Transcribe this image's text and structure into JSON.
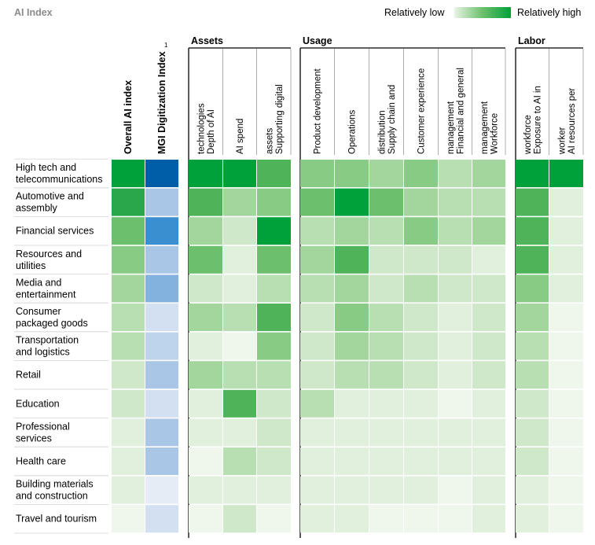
{
  "title": "AI Index",
  "legend": {
    "low_label": "Relatively low",
    "high_label": "Relatively high"
  },
  "colors": {
    "green_scale": [
      "#eff7ed",
      "#e1f0dd",
      "#cfe8ca",
      "#b8dfb2",
      "#a2d69c",
      "#88cb84",
      "#6cbf6c",
      "#4fb35a",
      "#2aa74a",
      "#00a13a"
    ],
    "blue_scale": [
      "#e6ecf6",
      "#d3e0f1",
      "#bed3ec",
      "#a9c6e7",
      "#83b2de",
      "#3a8fd1",
      "#005ea8"
    ],
    "group_rule": "#000000",
    "cell_gap": "#ffffff"
  },
  "chart_data": {
    "type": "heatmap",
    "value_scale": "1 = relatively low, 10 = relatively high",
    "standalone_columns": [
      {
        "key": "overall",
        "label": "Overall AI index",
        "color_scale": "green"
      },
      {
        "key": "mgi",
        "label": "MGI Digitization Index",
        "footnote": "1",
        "color_scale": "blue"
      }
    ],
    "groups": [
      {
        "name": "Assets",
        "columns": [
          "Depth of AI technologies",
          "AI spend",
          "Supporting digital assets"
        ]
      },
      {
        "name": "Usage",
        "columns": [
          "Product development",
          "Operations",
          "Supply chain and distribution",
          "Customer experience",
          "Financial and general management",
          "Workforce management"
        ]
      },
      {
        "name": "Labor",
        "columns": [
          "Exposure to AI in workforce",
          "AI resources per worker"
        ]
      }
    ],
    "rows": [
      {
        "label": "High tech and telecommunications",
        "values": [
          10,
          7,
          10,
          10,
          8,
          6,
          6,
          5,
          6,
          4,
          5,
          10,
          10
        ]
      },
      {
        "label": "Automotive and assembly",
        "values": [
          9,
          3,
          8,
          5,
          6,
          7,
          10,
          7,
          5,
          4,
          4,
          8,
          2
        ]
      },
      {
        "label": "Financial services",
        "values": [
          7,
          6,
          5,
          3,
          10,
          4,
          5,
          4,
          6,
          4,
          5,
          8,
          2
        ]
      },
      {
        "label": "Resources and utilities",
        "values": [
          6,
          3,
          7,
          2,
          7,
          5,
          8,
          3,
          3,
          3,
          2,
          8,
          2
        ]
      },
      {
        "label": "Media and entertainment",
        "values": [
          5,
          5,
          3,
          2,
          4,
          4,
          5,
          3,
          4,
          3,
          3,
          6,
          2
        ]
      },
      {
        "label": "Consumer packaged goods",
        "values": [
          4,
          1,
          5,
          4,
          8,
          3,
          6,
          4,
          3,
          2,
          3,
          5,
          1
        ]
      },
      {
        "label": "Transportation and logistics",
        "values": [
          4,
          2,
          2,
          1,
          6,
          3,
          5,
          4,
          3,
          2,
          3,
          4,
          1
        ]
      },
      {
        "label": "Retail",
        "values": [
          3,
          3,
          5,
          4,
          4,
          3,
          4,
          4,
          3,
          2,
          3,
          4,
          1
        ]
      },
      {
        "label": "Education",
        "values": [
          3,
          1,
          2,
          8,
          3,
          4,
          2,
          2,
          2,
          1,
          2,
          3,
          1
        ]
      },
      {
        "label": "Professional services",
        "values": [
          2,
          3,
          2,
          2,
          3,
          2,
          2,
          2,
          2,
          2,
          2,
          3,
          1
        ]
      },
      {
        "label": "Health care",
        "values": [
          2,
          3,
          1,
          4,
          3,
          2,
          2,
          2,
          2,
          2,
          2,
          3,
          1
        ]
      },
      {
        "label": "Building materials and construction",
        "values": [
          2,
          0,
          2,
          2,
          2,
          2,
          2,
          2,
          2,
          1,
          2,
          2,
          1
        ]
      },
      {
        "label": "Travel and tourism",
        "values": [
          1,
          1,
          1,
          3,
          1,
          2,
          2,
          1,
          1,
          1,
          2,
          2,
          1
        ]
      }
    ]
  }
}
